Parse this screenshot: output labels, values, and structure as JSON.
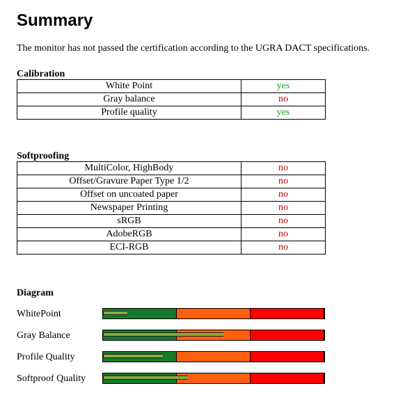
{
  "header": {
    "title": "Summary",
    "text": "The monitor has not passed the certification according to the UGRA DACT specifications."
  },
  "calibration": {
    "heading": "Calibration",
    "rows": [
      {
        "label": "White Point",
        "result": "yes",
        "color": "#22a022"
      },
      {
        "label": "Gray balance",
        "result": "no",
        "color": "#c00000"
      },
      {
        "label": "Profile quality",
        "result": "yes",
        "color": "#22a022"
      }
    ]
  },
  "softproofing": {
    "heading": "Softproofing",
    "rows": [
      {
        "label": "MultiColor, HighBody",
        "result": "no",
        "color": "#c00000"
      },
      {
        "label": "Offset/Gravure Paper Type 1/2",
        "result": "no",
        "color": "#c00000"
      },
      {
        "label": "Offset on uncoated paper",
        "result": "no",
        "color": "#c00000"
      },
      {
        "label": "Newspaper Printing",
        "result": "no",
        "color": "#c00000"
      },
      {
        "label": "sRGB",
        "result": "no",
        "color": "#c00000"
      },
      {
        "label": "AdobeRGB",
        "result": "no",
        "color": "#c00000"
      },
      {
        "label": "ECI-RGB",
        "result": "no",
        "color": "#c00000"
      }
    ]
  },
  "diagram": {
    "heading": "Diagram",
    "zone_colors": [
      "#157a2a",
      "#ff6010",
      "#ff0000"
    ],
    "indicator_color": "#8aac3c",
    "rows": [
      {
        "label": "WhitePoint",
        "value": 0.11
      },
      {
        "label": "Gray Balance",
        "value": 0.54
      },
      {
        "label": "Profile Quality",
        "value": 0.27
      },
      {
        "label": "Softproof Quality",
        "value": 0.38
      }
    ]
  }
}
